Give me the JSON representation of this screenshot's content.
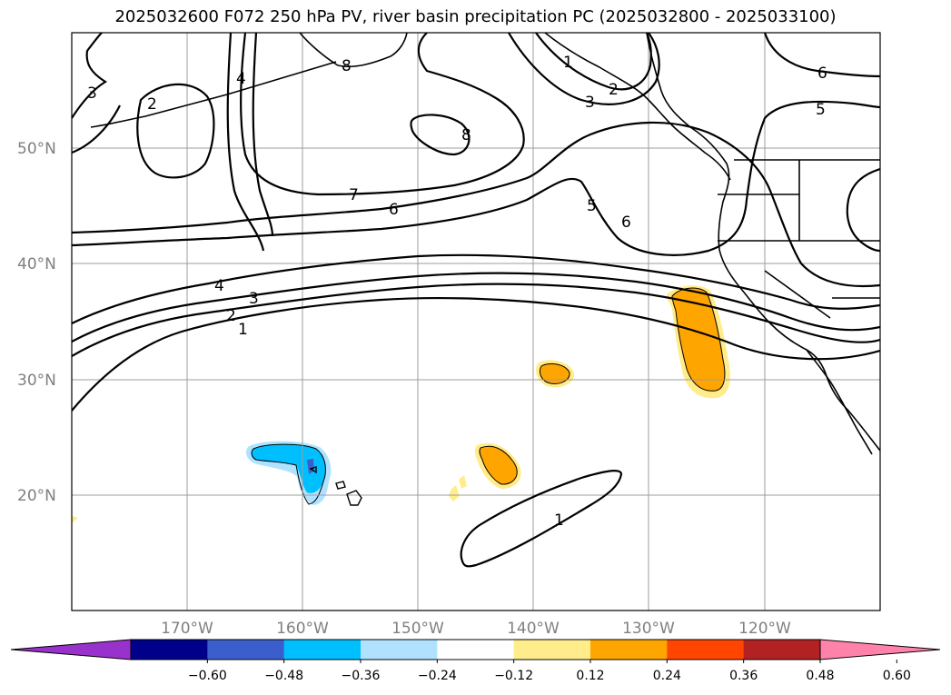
{
  "title": "2025032600 F072 250 hPa PV, river basin precipitation PC (2025032800 - 2025033100)",
  "map": {
    "lon_range": [
      -180,
      -110
    ],
    "lat_range": [
      10,
      60
    ],
    "lat_labels": [
      "50°N",
      "40°N",
      "30°N",
      "20°N"
    ],
    "lon_labels": [
      "170°W",
      "160°W",
      "150°W",
      "140°W",
      "130°W",
      "120°W"
    ],
    "contour_labels": [
      {
        "text": "3"
      },
      {
        "text": "2"
      },
      {
        "text": "4"
      },
      {
        "text": "8"
      },
      {
        "text": "8"
      },
      {
        "text": "7"
      },
      {
        "text": "6"
      },
      {
        "text": "1"
      },
      {
        "text": "2"
      },
      {
        "text": "3"
      },
      {
        "text": "6"
      },
      {
        "text": "5"
      },
      {
        "text": "5"
      },
      {
        "text": "6"
      },
      {
        "text": "4"
      },
      {
        "text": "3"
      },
      {
        "text": "2"
      },
      {
        "text": "1"
      },
      {
        "text": "1"
      }
    ]
  },
  "colorbar": {
    "colors": [
      "#9932CC",
      "#00008B",
      "#3A5FCD",
      "#00BFFF",
      "#B0E2FF",
      "#FFFFFF",
      "#FFEC8B",
      "#FFA500",
      "#FF4500",
      "#B22222",
      "#FF82AB"
    ],
    "tick_labels": [
      "−0.60",
      "−0.48",
      "−0.36",
      "−0.24",
      "−0.12",
      "0.12",
      "0.24",
      "0.36",
      "0.48",
      "0.60"
    ]
  }
}
